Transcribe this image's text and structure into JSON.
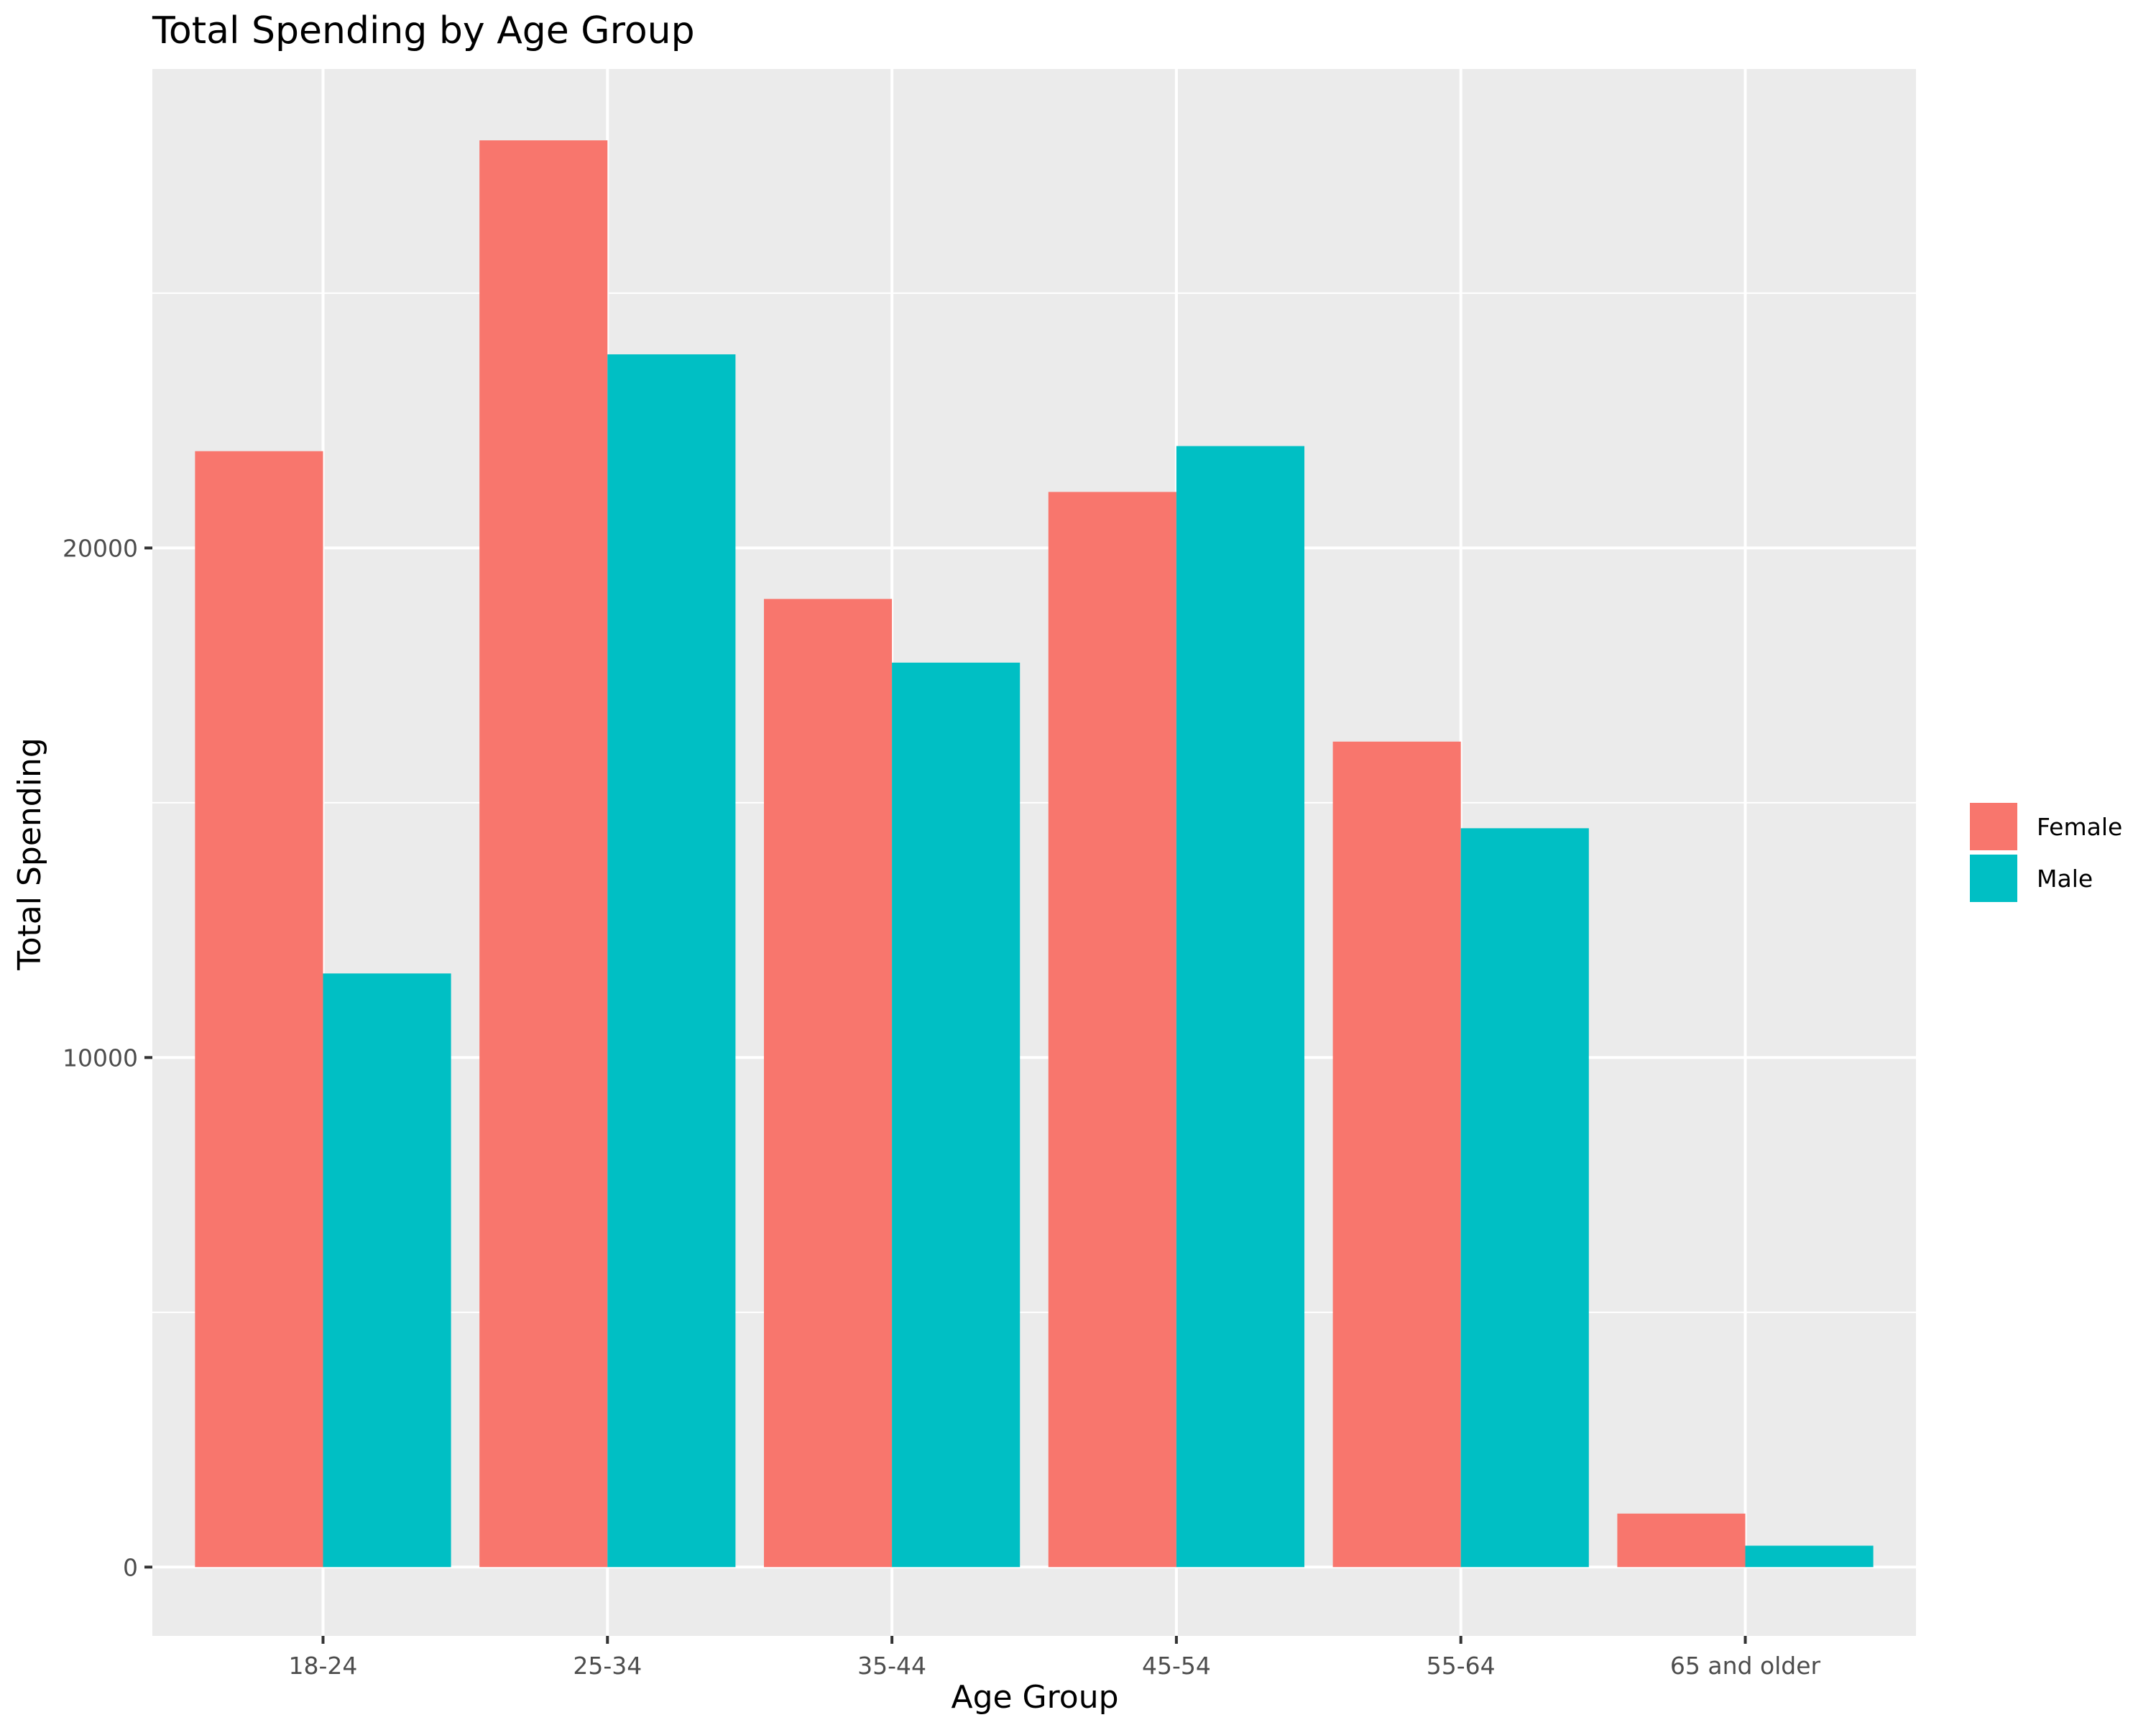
{
  "chart_data": {
    "type": "bar",
    "title": "Total Spending by Age Group",
    "xlabel": "Age Group",
    "ylabel": "Total Spending",
    "categories": [
      "18-24",
      "25-34",
      "35-44",
      "45-54",
      "55-64",
      "65 and older"
    ],
    "series": [
      {
        "name": "Female",
        "color": "#F8766D",
        "values": [
          21900,
          28000,
          19000,
          21100,
          16200,
          1050
        ]
      },
      {
        "name": "Male",
        "color": "#00BFC4",
        "values": [
          11650,
          23800,
          17750,
          22000,
          14500,
          420
        ]
      }
    ],
    "ylim": [
      -1350,
      29400
    ],
    "yticks": [
      0,
      10000,
      20000
    ],
    "grid": true,
    "legend_position": "right",
    "panel_color": "#EBEBEB",
    "grid_color": "#FFFFFF"
  }
}
